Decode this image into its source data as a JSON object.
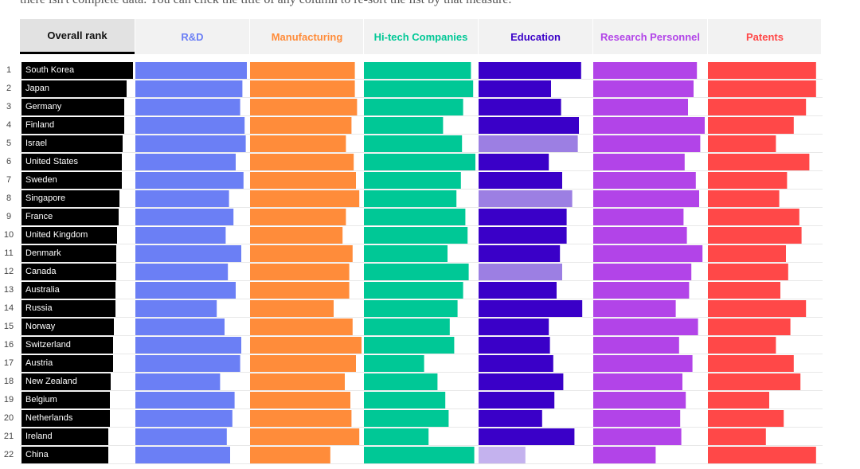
{
  "intro_text": "there isn't complete data. You can click the title of any column to re-sort the list by that measure.",
  "colors": {
    "rank": "#000000",
    "rd": "#6b7ff5",
    "manufacturing": "#ff8c3a",
    "hitech": "#00c896",
    "education": "#3a00c8",
    "research": "#b244e8",
    "patents": "#ff4848"
  },
  "chart_data": {
    "type": "table",
    "title": "Overall rank",
    "columns": [
      {
        "key": "rank",
        "label": "Overall rank",
        "color": "#111111"
      },
      {
        "key": "rd",
        "label": "R&D",
        "color": "#6b7ff5"
      },
      {
        "key": "manufacturing",
        "label": "Manufacturing",
        "color": "#ff8c3a"
      },
      {
        "key": "hitech",
        "label": "Hi-tech Companies",
        "color": "#00c896"
      },
      {
        "key": "education",
        "label": "Education",
        "color": "#3a00c8"
      },
      {
        "key": "research",
        "label": "Research Personnel",
        "color": "#b244e8"
      },
      {
        "key": "patents",
        "label": "Patents",
        "color": "#ff4848"
      }
    ],
    "value_scale": [
      0,
      100
    ],
    "rows": [
      {
        "rank": "1",
        "country": "South Korea",
        "score": 100,
        "rd": 100,
        "manufacturing": 94,
        "hitech": 96,
        "education": 92,
        "research": 93,
        "patents": 97
      },
      {
        "rank": "2",
        "country": "Japan",
        "score": 94,
        "rd": 96,
        "manufacturing": 94,
        "hitech": 98,
        "education": 65,
        "research": 90,
        "patents": 97
      },
      {
        "rank": "3",
        "country": "Germany",
        "score": 92,
        "rd": 94,
        "manufacturing": 96,
        "hitech": 89,
        "education": 74,
        "research": 85,
        "patents": 88
      },
      {
        "rank": "4",
        "country": "Finland",
        "score": 92,
        "rd": 98,
        "manufacturing": 91,
        "hitech": 71,
        "education": 90,
        "research": 100,
        "patents": 77
      },
      {
        "rank": "5",
        "country": "Israel",
        "score": 91,
        "rd": 99,
        "manufacturing": 86,
        "hitech": 88,
        "education": 89,
        "research": 96,
        "patents": 61,
        "education_partial": true
      },
      {
        "rank": "6",
        "country": "United States",
        "score": 90,
        "rd": 90,
        "manufacturing": 93,
        "hitech": 100,
        "education": 63,
        "research": 82,
        "patents": 91
      },
      {
        "rank": "7",
        "country": "Sweden",
        "score": 90,
        "rd": 97,
        "manufacturing": 95,
        "hitech": 87,
        "education": 75,
        "research": 92,
        "patents": 71
      },
      {
        "rank": "8",
        "country": "Singapore",
        "score": 88,
        "rd": 84,
        "manufacturing": 98,
        "hitech": 83,
        "education": 84,
        "research": 95,
        "patents": 64,
        "education_partial": true
      },
      {
        "rank": "9",
        "country": "France",
        "score": 87,
        "rd": 88,
        "manufacturing": 86,
        "hitech": 91,
        "education": 79,
        "research": 81,
        "patents": 82
      },
      {
        "rank": "10",
        "country": "United Kingdom",
        "score": 86,
        "rd": 81,
        "manufacturing": 83,
        "hitech": 93,
        "education": 79,
        "research": 84,
        "patents": 84
      },
      {
        "rank": "11",
        "country": "Denmark",
        "score": 85,
        "rd": 95,
        "manufacturing": 92,
        "hitech": 75,
        "education": 73,
        "research": 98,
        "patents": 70
      },
      {
        "rank": "12",
        "country": "Canada",
        "score": 85,
        "rd": 83,
        "manufacturing": 89,
        "hitech": 94,
        "education": 75,
        "research": 88,
        "patents": 72,
        "education_partial": true
      },
      {
        "rank": "13",
        "country": "Australia",
        "score": 84,
        "rd": 90,
        "manufacturing": 89,
        "hitech": 89,
        "education": 70,
        "research": 86,
        "patents": 65
      },
      {
        "rank": "14",
        "country": "Russia",
        "score": 84,
        "rd": 73,
        "manufacturing": 75,
        "hitech": 84,
        "education": 93,
        "research": 74,
        "patents": 88
      },
      {
        "rank": "15",
        "country": "Norway",
        "score": 83,
        "rd": 80,
        "manufacturing": 92,
        "hitech": 77,
        "education": 63,
        "research": 94,
        "patents": 74
      },
      {
        "rank": "16",
        "country": "Switzerland",
        "score": 82,
        "rd": 95,
        "manufacturing": 100,
        "hitech": 81,
        "education": 64,
        "research": 77,
        "patents": 61
      },
      {
        "rank": "17",
        "country": "Austria",
        "score": 82,
        "rd": 94,
        "manufacturing": 95,
        "hitech": 54,
        "education": 67,
        "research": 89,
        "patents": 77
      },
      {
        "rank": "18",
        "country": "New Zealand",
        "score": 80,
        "rd": 76,
        "manufacturing": 85,
        "hitech": 66,
        "education": 76,
        "research": 80,
        "patents": 83
      },
      {
        "rank": "19",
        "country": "Belgium",
        "score": 79,
        "rd": 89,
        "manufacturing": 90,
        "hitech": 73,
        "education": 68,
        "research": 83,
        "patents": 55
      },
      {
        "rank": "20",
        "country": "Netherlands",
        "score": 79,
        "rd": 87,
        "manufacturing": 91,
        "hitech": 76,
        "education": 57,
        "research": 78,
        "patents": 68
      },
      {
        "rank": "21",
        "country": "Ireland",
        "score": 78,
        "rd": 82,
        "manufacturing": 98,
        "hitech": 58,
        "education": 86,
        "research": 79,
        "patents": 52
      },
      {
        "rank": "22",
        "country": "China",
        "score": 78,
        "rd": 85,
        "manufacturing": 72,
        "hitech": 99,
        "education": 42,
        "research": 56,
        "patents": 97,
        "education_partial": true
      }
    ]
  }
}
